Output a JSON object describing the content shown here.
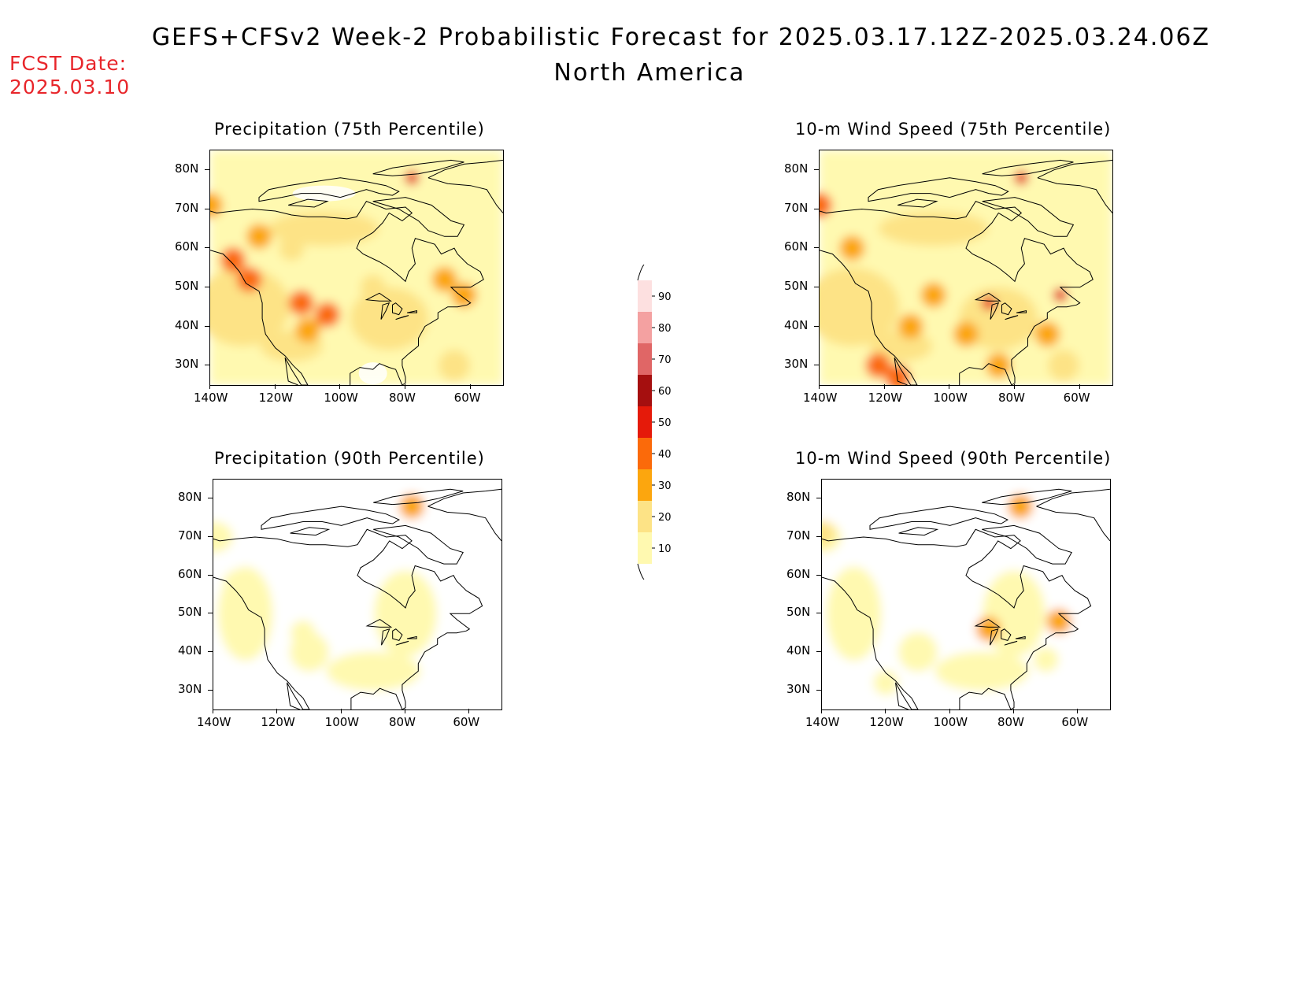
{
  "header": {
    "title": "GEFS+CFSv2 Week-2 Probabilistic Forecast for 2025.03.17.12Z-2025.03.24.06Z",
    "subtitle": "North America",
    "fcst_label": "FCST Date:",
    "fcst_value": "2025.03.10"
  },
  "panels": [
    {
      "title": "Precipitation (75th Percentile)",
      "variable": "precipitation",
      "percentile": "75th",
      "blobs": [
        {
          "lon": -133,
          "lat": 57,
          "level": 40
        },
        {
          "lon": -128,
          "lat": 52,
          "level": 40
        },
        {
          "lon": -112,
          "lat": 46,
          "level": 40
        },
        {
          "lon": -104,
          "lat": 43,
          "level": 40
        },
        {
          "lon": -110,
          "lat": 39,
          "level": 30
        },
        {
          "lon": -68,
          "lat": 52,
          "level": 30
        },
        {
          "lon": -62,
          "lat": 48,
          "level": 30
        },
        {
          "lon": -78,
          "lat": 78,
          "level": 50
        },
        {
          "lon": -140,
          "lat": 71,
          "level": 30
        },
        {
          "lon": -125,
          "lat": 63,
          "level": 30
        },
        {
          "lon": -90,
          "lat": 50,
          "level": 20
        },
        {
          "lon": -115,
          "lat": 60,
          "level": 20
        }
      ]
    },
    {
      "title": "10-m Wind Speed (75th Percentile)",
      "variable": "wind",
      "percentile": "75th",
      "blobs": [
        {
          "lon": -122,
          "lat": 30,
          "level": 40
        },
        {
          "lon": -116,
          "lat": 27,
          "level": 40
        },
        {
          "lon": -88,
          "lat": 46,
          "level": 50
        },
        {
          "lon": -66,
          "lat": 48,
          "level": 50
        },
        {
          "lon": -78,
          "lat": 78,
          "level": 50
        },
        {
          "lon": -140,
          "lat": 71,
          "level": 40
        },
        {
          "lon": -130,
          "lat": 60,
          "level": 30
        },
        {
          "lon": -105,
          "lat": 48,
          "level": 30
        },
        {
          "lon": -95,
          "lat": 38,
          "level": 30
        },
        {
          "lon": -70,
          "lat": 38,
          "level": 30
        },
        {
          "lon": -85,
          "lat": 30,
          "level": 30
        },
        {
          "lon": -112,
          "lat": 40,
          "level": 30
        }
      ]
    },
    {
      "title": "Precipitation (90th Percentile)",
      "variable": "precipitation",
      "percentile": "90th",
      "blobs": [
        {
          "lon": -133,
          "lat": 58,
          "level": 10
        },
        {
          "lon": -112,
          "lat": 45,
          "level": 10
        },
        {
          "lon": -80,
          "lat": 47,
          "level": 10
        },
        {
          "lon": -78,
          "lat": 78,
          "level": 30
        },
        {
          "lon": -108,
          "lat": 39,
          "level": 10
        }
      ]
    },
    {
      "title": "10-m Wind Speed (90th Percentile)",
      "variable": "wind",
      "percentile": "90th",
      "blobs": [
        {
          "lon": -120,
          "lat": 32,
          "level": 10
        },
        {
          "lon": -88,
          "lat": 46,
          "level": 30
        },
        {
          "lon": -66,
          "lat": 48,
          "level": 30
        },
        {
          "lon": -78,
          "lat": 78,
          "level": 30
        },
        {
          "lon": -90,
          "lat": 35,
          "level": 10
        },
        {
          "lon": -140,
          "lat": 71,
          "level": 20
        },
        {
          "lon": -70,
          "lat": 38,
          "level": 10
        }
      ]
    }
  ],
  "axes": {
    "lat_ticks": [
      "80N",
      "70N",
      "60N",
      "50N",
      "40N",
      "30N"
    ],
    "lat_values": [
      80,
      70,
      60,
      50,
      40,
      30
    ],
    "lon_ticks": [
      "140W",
      "120W",
      "100W",
      "80W",
      "60W"
    ],
    "lon_values": [
      -140,
      -120,
      -100,
      -80,
      -60
    ],
    "lon_range": [
      -140,
      -50
    ],
    "lat_range": [
      25,
      85
    ]
  },
  "colorbar": {
    "labels": [
      "90",
      "80",
      "70",
      "60",
      "50",
      "40",
      "30",
      "20",
      "10"
    ],
    "levels": [
      10,
      20,
      30,
      40,
      50,
      60,
      70,
      80,
      90
    ],
    "colors": {
      "10": "#fff9b0",
      "20": "#fde386",
      "30": "#fca60e",
      "40": "#fb6a0a",
      "50": "#e51a0a",
      "60": "#a50f0f",
      "70": "#e06666",
      "80": "#f4a1a1",
      "90": "#fde0e0"
    }
  }
}
